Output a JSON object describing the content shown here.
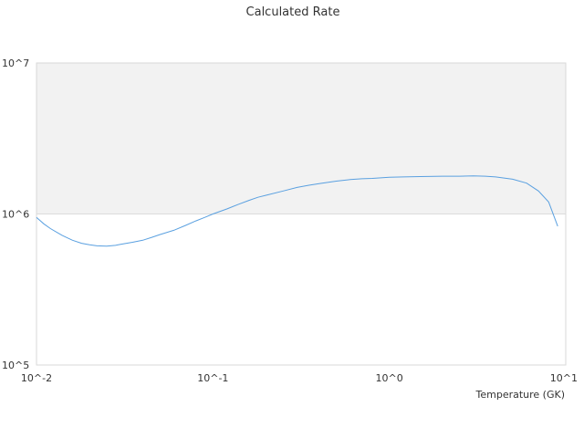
{
  "chart_data": {
    "type": "line",
    "title": "Calculated Rate",
    "xlabel": "Temperature (GK)",
    "ylabel": "",
    "xscale": "log",
    "yscale": "log",
    "xlim": [
      0.01,
      10
    ],
    "ylim": [
      100000,
      10000000
    ],
    "x_ticks": [
      "10^-2",
      "10^-1",
      "10^0",
      "10^1"
    ],
    "y_ticks": [
      "10^7",
      "10^6",
      "10^5"
    ],
    "grid": true,
    "band_colors": [
      "#f2f2f2",
      "#ffffff"
    ],
    "line_color": "#5aa0e0",
    "series": [
      {
        "x": [
          0.01,
          0.011,
          0.012,
          0.014,
          0.016,
          0.018,
          0.02,
          0.022,
          0.025,
          0.028,
          0.03,
          0.035,
          0.04,
          0.045,
          0.05,
          0.06,
          0.07,
          0.08,
          0.09,
          0.1,
          0.12,
          0.14,
          0.16,
          0.18,
          0.2,
          0.25,
          0.3,
          0.35,
          0.4,
          0.5,
          0.6,
          0.7,
          0.8,
          1.0,
          1.2,
          1.5,
          2.0,
          2.5,
          3.0,
          3.5,
          4.0,
          5.0,
          6.0,
          7.0,
          8.0,
          9.0
        ],
        "y": [
          950000,
          860000,
          800000,
          720000,
          670000,
          640000,
          625000,
          615000,
          613000,
          620000,
          630000,
          650000,
          670000,
          700000,
          730000,
          780000,
          840000,
          900000,
          950000,
          1000000,
          1080000,
          1160000,
          1230000,
          1290000,
          1330000,
          1420000,
          1500000,
          1550000,
          1590000,
          1650000,
          1690000,
          1710000,
          1720000,
          1750000,
          1760000,
          1770000,
          1780000,
          1780000,
          1790000,
          1780000,
          1760000,
          1700000,
          1600000,
          1420000,
          1200000,
          830000
        ]
      }
    ]
  }
}
